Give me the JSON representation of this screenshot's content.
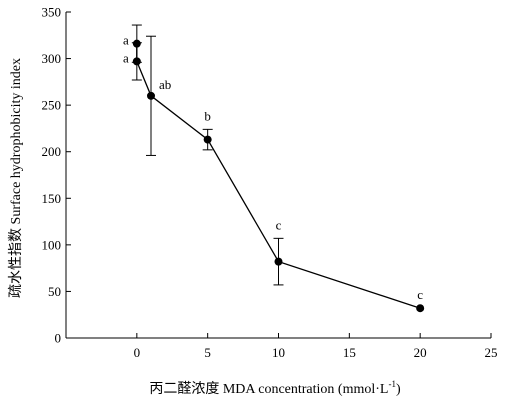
{
  "chart_data": {
    "type": "line",
    "title": "",
    "xlabel": "丙二醛浓度 MDA concentration (mmol·L",
    "xlabel_superscript": "-1",
    "xlabel_suffix": ")",
    "ylabel": "疏水性指数 Surface hydrophobicity index",
    "xlim": [
      -5,
      25
    ],
    "ylim": [
      0,
      350
    ],
    "x_ticks": [
      0,
      5,
      10,
      15,
      20,
      25
    ],
    "y_ticks": [
      0,
      50,
      100,
      150,
      200,
      250,
      300,
      350
    ],
    "grid": false,
    "legend": "none",
    "line_color": "#000000",
    "series": [
      {
        "x": [
          0,
          0,
          1,
          5,
          10,
          20
        ],
        "y": [
          316,
          297,
          260,
          213,
          82,
          32
        ],
        "error": [
          20,
          20,
          64,
          11,
          25,
          0
        ],
        "labels": [
          "a",
          "a",
          "ab",
          "b",
          "c",
          "c"
        ]
      }
    ]
  }
}
